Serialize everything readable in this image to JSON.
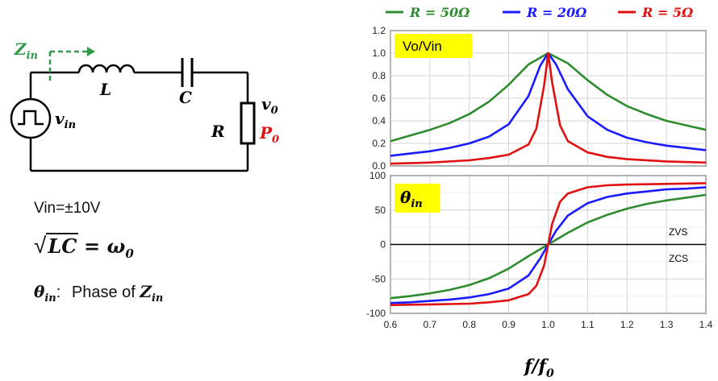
{
  "circuit": {
    "zin_label": "Z",
    "zin_sub": "in",
    "vin_label": "v",
    "vin_sub": "in",
    "l_label": "L",
    "c_label": "C",
    "r_label": "R",
    "v0_label": "v",
    "v0_sub": "0",
    "p0_label": "P",
    "p0_sub": "0"
  },
  "notes": {
    "vin_text": "Vin=±10V",
    "lc_sqrt": "LC",
    "lc_rhs": "= ω",
    "lc_rhs_sub": "0",
    "theta_symbol": "θ",
    "theta_sub": "in",
    "theta_colon": ":",
    "theta_text": "Phase of",
    "theta_z": "Z",
    "theta_z_sub": "in"
  },
  "chart_data": [
    {
      "type": "line",
      "title": "Vo/Vin",
      "xlim": [
        0.6,
        1.4
      ],
      "ylim": [
        0.0,
        1.2
      ],
      "yticks": [
        "1.2",
        "1.0",
        "0.8",
        "0.6",
        "0.4",
        "0.2",
        "0.0"
      ],
      "grid": true,
      "series": [
        {
          "name": "R = 50Ω",
          "color": "#2e8b2e",
          "x": [
            0.6,
            0.65,
            0.7,
            0.75,
            0.8,
            0.85,
            0.9,
            0.95,
            1.0,
            1.05,
            1.1,
            1.15,
            1.2,
            1.25,
            1.3,
            1.35,
            1.4
          ],
          "y": [
            0.22,
            0.27,
            0.32,
            0.38,
            0.46,
            0.57,
            0.72,
            0.9,
            1.0,
            0.91,
            0.76,
            0.63,
            0.53,
            0.46,
            0.4,
            0.36,
            0.32
          ]
        },
        {
          "name": "R = 20Ω",
          "color": "#1a1aff",
          "x": [
            0.6,
            0.65,
            0.7,
            0.75,
            0.8,
            0.85,
            0.9,
            0.95,
            0.98,
            1.0,
            1.02,
            1.05,
            1.1,
            1.15,
            1.2,
            1.25,
            1.3,
            1.35,
            1.4
          ],
          "y": [
            0.09,
            0.11,
            0.13,
            0.16,
            0.2,
            0.26,
            0.37,
            0.62,
            0.89,
            1.0,
            0.9,
            0.68,
            0.44,
            0.32,
            0.25,
            0.21,
            0.18,
            0.16,
            0.14
          ]
        },
        {
          "name": "R = 5Ω",
          "color": "#e01010",
          "x": [
            0.6,
            0.7,
            0.8,
            0.85,
            0.9,
            0.95,
            0.97,
            0.99,
            1.0,
            1.01,
            1.03,
            1.05,
            1.1,
            1.15,
            1.2,
            1.3,
            1.4
          ],
          "y": [
            0.02,
            0.03,
            0.05,
            0.07,
            0.1,
            0.19,
            0.33,
            0.72,
            1.0,
            0.74,
            0.36,
            0.22,
            0.12,
            0.08,
            0.06,
            0.04,
            0.03
          ]
        }
      ]
    },
    {
      "type": "line",
      "title": "θ",
      "title_sub": "in",
      "xlabel": "f/f",
      "xlabel_sub": "0",
      "xlim": [
        0.6,
        1.4
      ],
      "ylim": [
        -100,
        100
      ],
      "xticks": [
        "0.6",
        "0.7",
        "0.8",
        "0.9",
        "1.0",
        "1.1",
        "1.2",
        "1.3",
        "1.4"
      ],
      "yticks": [
        "100",
        "50",
        "0",
        "-50",
        "-100"
      ],
      "annotations": [
        "ZVS",
        "ZCS"
      ],
      "grid": true,
      "series": [
        {
          "name": "R = 50Ω",
          "color": "#2e8b2e",
          "x": [
            0.6,
            0.65,
            0.7,
            0.75,
            0.8,
            0.85,
            0.9,
            0.95,
            1.0,
            1.05,
            1.1,
            1.15,
            1.2,
            1.25,
            1.3,
            1.35,
            1.4
          ],
          "y": [
            -78,
            -75,
            -71,
            -66,
            -59,
            -49,
            -35,
            -17,
            0,
            17,
            32,
            43,
            52,
            59,
            64,
            68,
            72
          ]
        },
        {
          "name": "R = 20Ω",
          "color": "#1a1aff",
          "x": [
            0.6,
            0.65,
            0.7,
            0.75,
            0.8,
            0.85,
            0.9,
            0.95,
            0.98,
            1.0,
            1.02,
            1.05,
            1.1,
            1.15,
            1.2,
            1.25,
            1.3,
            1.35,
            1.4
          ],
          "y": [
            -85,
            -84,
            -82,
            -80,
            -77,
            -72,
            -64,
            -45,
            -20,
            0,
            20,
            42,
            60,
            69,
            74,
            77,
            80,
            81,
            83
          ]
        },
        {
          "name": "R = 5Ω",
          "color": "#e01010",
          "x": [
            0.6,
            0.7,
            0.8,
            0.85,
            0.9,
            0.95,
            0.97,
            0.99,
            1.0,
            1.01,
            1.03,
            1.05,
            1.1,
            1.15,
            1.2,
            1.3,
            1.4
          ],
          "y": [
            -88,
            -87,
            -86,
            -84,
            -81,
            -72,
            -60,
            -30,
            0,
            30,
            62,
            74,
            83,
            86,
            87,
            88,
            89
          ]
        }
      ]
    }
  ]
}
